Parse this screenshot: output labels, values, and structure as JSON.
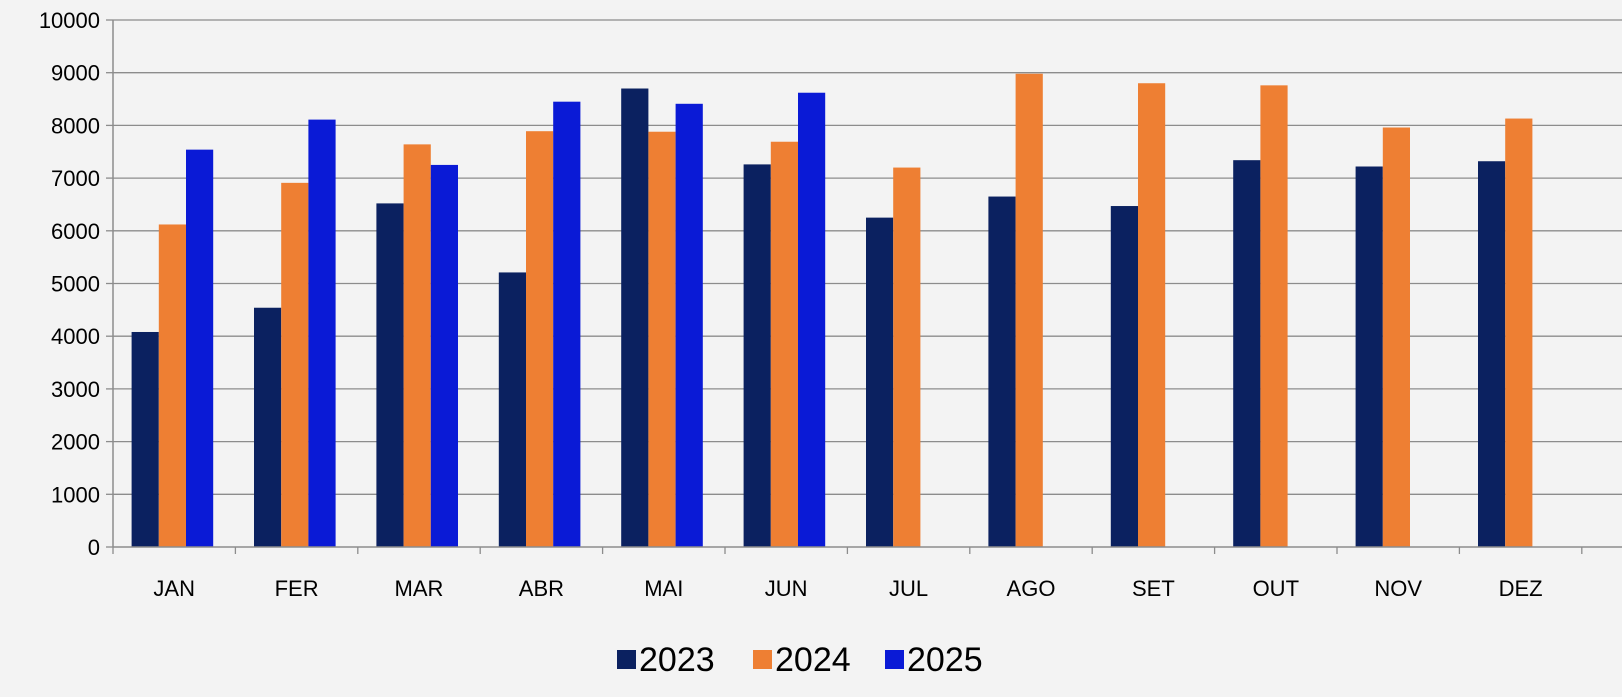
{
  "chart_data": {
    "type": "bar",
    "categories": [
      "JAN",
      "FER",
      "MAR",
      "ABR",
      "MAI",
      "JUN",
      "JUL",
      "AGO",
      "SET",
      "OUT",
      "NOV",
      "DEZ"
    ],
    "series": [
      {
        "name": "2023",
        "color": "#0b2160",
        "values": [
          4080,
          4540,
          6520,
          5210,
          8700,
          7260,
          6250,
          6650,
          6470,
          7340,
          7220,
          7320
        ]
      },
      {
        "name": "2024",
        "color": "#ee7f33",
        "values": [
          6120,
          6910,
          7640,
          7890,
          7880,
          7690,
          7200,
          8980,
          8800,
          8760,
          7960,
          8130
        ]
      },
      {
        "name": "2025",
        "color": "#0a1ad6",
        "values": [
          7540,
          8110,
          7250,
          8450,
          8410,
          8620,
          null,
          null,
          null,
          null,
          null,
          null
        ]
      }
    ],
    "yticks": [
      "0",
      "1000",
      "2000",
      "3000",
      "4000",
      "5000",
      "6000",
      "7000",
      "8000",
      "9000",
      "10000"
    ],
    "ylim": [
      0,
      10000
    ],
    "grid": true,
    "legend": "bottom-center",
    "title": "",
    "xlabel": "",
    "ylabel": ""
  }
}
